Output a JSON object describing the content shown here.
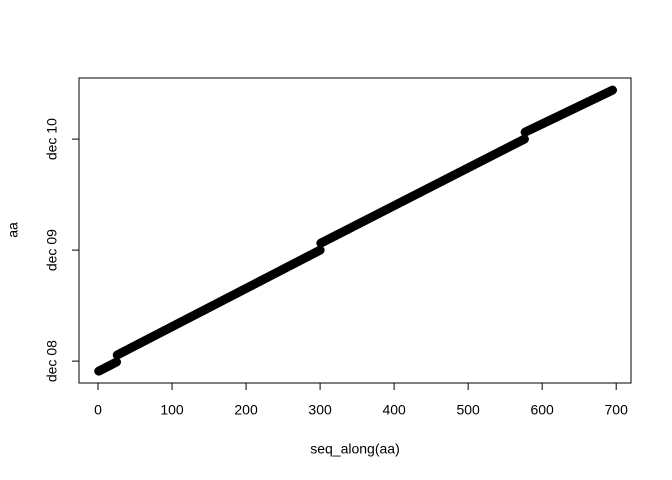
{
  "chart_data": {
    "type": "line",
    "xlabel": "seq_along(aa)",
    "ylabel": "aa",
    "x": [
      1,
      25,
      null,
      26,
      300,
      null,
      301,
      576,
      null,
      577,
      695
    ],
    "series": [
      {
        "color": "#000000",
        "values": [
          14181,
          14211,
          null,
          14234,
          14579,
          null,
          14602,
          14944,
          null,
          14967,
          15105
        ]
      }
    ],
    "xlim": [
      -25.7,
      720
    ],
    "xticks": [
      0,
      100,
      200,
      300,
      400,
      500,
      600,
      700
    ],
    "ylim": [
      14142,
      15145
    ],
    "yticks": [
      {
        "value": 14214,
        "label": "dec 08"
      },
      {
        "value": 14579,
        "label": "dec 09"
      },
      {
        "value": 14944,
        "label": "dec 10"
      }
    ]
  }
}
